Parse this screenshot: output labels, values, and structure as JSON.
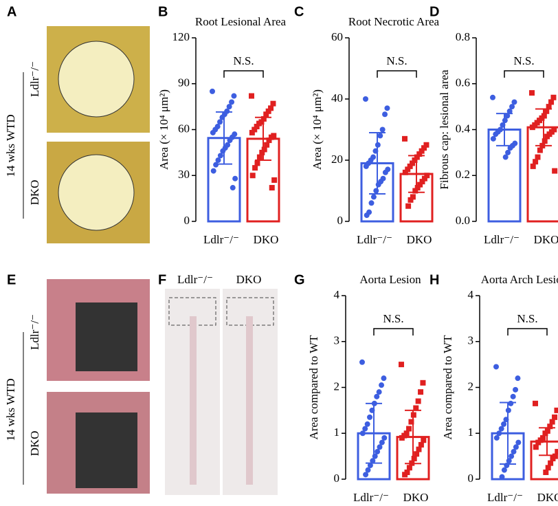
{
  "panels": {
    "letters": [
      "A",
      "B",
      "C",
      "D",
      "E",
      "F",
      "G",
      "H"
    ],
    "A": {
      "group": "14 wks WTD",
      "rows": [
        "Ldlr⁻/⁻",
        "DKO"
      ]
    },
    "E": {
      "group": "14 wks WTD",
      "rows": [
        "Ldlr⁻/⁻",
        "DKO"
      ]
    },
    "F": {
      "columns": [
        "Ldlr⁻/⁻",
        "DKO"
      ]
    }
  },
  "chart_data": [
    {
      "type": "bar",
      "title": "Root Lesional Area",
      "ylabel": "Area (× 10⁴ μm²)",
      "annotation": "N.S.",
      "categories": [
        "Ldlr⁻/⁻",
        "DKO"
      ],
      "colors": [
        "#3d5ee0",
        "#e02020"
      ],
      "markers": [
        "circle",
        "square"
      ],
      "values": [
        54.5,
        54
      ],
      "errors": [
        17,
        14
      ],
      "points": [
        [
          85,
          82,
          78,
          75,
          72,
          70,
          68,
          65,
          62,
          60,
          58,
          57,
          55,
          53,
          50,
          48,
          46,
          43,
          40,
          37,
          33,
          28,
          22
        ],
        [
          82,
          77,
          74,
          72,
          70,
          67,
          65,
          64,
          62,
          60,
          58,
          56,
          55,
          53,
          50,
          47,
          45,
          42,
          38,
          35,
          30,
          27,
          22
        ]
      ],
      "ylim": [
        0,
        120
      ],
      "yticks": [
        0,
        30,
        60,
        90,
        120
      ]
    },
    {
      "type": "bar",
      "title": "Root Necrotic Area",
      "ylabel": "Area (× 10⁴ μm²)",
      "annotation": "N.S.",
      "categories": [
        "Ldlr⁻/⁻",
        "DKO"
      ],
      "colors": [
        "#3d5ee0",
        "#e02020"
      ],
      "markers": [
        "circle",
        "square"
      ],
      "values": [
        19,
        15.5
      ],
      "errors": [
        10,
        6
      ],
      "points": [
        [
          40,
          37,
          35,
          30,
          28,
          25,
          23,
          21,
          20,
          19,
          18,
          17,
          16,
          14,
          13,
          12,
          10,
          8,
          6,
          3,
          2
        ],
        [
          27,
          25,
          24,
          23,
          22,
          21,
          20,
          19,
          18,
          17,
          16,
          15,
          14,
          13,
          12,
          11,
          10,
          8,
          7,
          5
        ]
      ],
      "ylim": [
        0,
        60
      ],
      "yticks": [
        0,
        20,
        40,
        60
      ]
    },
    {
      "type": "bar",
      "title": "",
      "ylabel": "Fibrous cap: lesional area",
      "annotation": "N.S.",
      "categories": [
        "Ldlr⁻/⁻",
        "DKO"
      ],
      "colors": [
        "#3d5ee0",
        "#e02020"
      ],
      "markers": [
        "circle",
        "square"
      ],
      "values": [
        0.4,
        0.41
      ],
      "errors": [
        0.07,
        0.08
      ],
      "points": [
        [
          0.54,
          0.52,
          0.5,
          0.48,
          0.46,
          0.44,
          0.42,
          0.4,
          0.39,
          0.38,
          0.36,
          0.34,
          0.33,
          0.32,
          0.3,
          0.28
        ],
        [
          0.56,
          0.54,
          0.52,
          0.5,
          0.48,
          0.46,
          0.45,
          0.44,
          0.43,
          0.42,
          0.41,
          0.4,
          0.39,
          0.38,
          0.37,
          0.35,
          0.33,
          0.31,
          0.28,
          0.26,
          0.24,
          0.22
        ]
      ],
      "ylim": [
        0,
        0.8
      ],
      "yticks": [
        {
          "value": 0,
          "label": "0.0"
        },
        0.2,
        0.4,
        0.6,
        0.8
      ]
    },
    {
      "type": "bar",
      "title": "Aorta Lesion",
      "ylabel": "Area compared to WT",
      "annotation": "N.S.",
      "categories": [
        "Ldlr⁻/⁻",
        "DKO"
      ],
      "colors": [
        "#3d5ee0",
        "#e02020"
      ],
      "markers": [
        "circle",
        "square"
      ],
      "values": [
        1,
        0.92
      ],
      "errors": [
        0.65,
        0.58
      ],
      "points": [
        [
          2.55,
          2.2,
          2.05,
          1.9,
          1.8,
          1.65,
          1.5,
          1.35,
          1.2,
          1.1,
          1,
          0.9,
          0.8,
          0.7,
          0.6,
          0.5,
          0.4,
          0.3,
          0.2,
          0.1
        ],
        [
          2.5,
          2.1,
          1.9,
          1.7,
          1.55,
          1.4,
          1.25,
          1.1,
          1,
          0.95,
          0.9,
          0.85,
          0.75,
          0.65,
          0.55,
          0.45,
          0.35,
          0.25,
          0.15,
          0.1
        ]
      ],
      "ylim": [
        0,
        4
      ],
      "yticks": [
        0,
        1,
        2,
        3,
        4
      ]
    },
    {
      "type": "bar",
      "title": "Aorta Arch Lesion",
      "ylabel": "Area compared to WT",
      "annotation": "N.S.",
      "categories": [
        "Ldlr⁻/⁻",
        "DKO"
      ],
      "colors": [
        "#3d5ee0",
        "#e02020"
      ],
      "markers": [
        "circle",
        "square"
      ],
      "values": [
        1,
        0.82
      ],
      "errors": [
        0.67,
        0.3
      ],
      "points": [
        [
          2.45,
          2.2,
          1.95,
          1.8,
          1.65,
          1.5,
          1.3,
          1.2,
          1.1,
          1,
          0.9,
          0.8,
          0.7,
          0.6,
          0.5,
          0.4,
          0.3,
          0.2,
          0.05
        ],
        [
          1.65,
          1.5,
          1.35,
          1.25,
          1.15,
          1.05,
          1,
          0.9,
          0.85,
          0.8,
          0.7,
          0.6,
          0.5,
          0.45,
          0.35,
          0.25,
          0.15
        ]
      ],
      "ylim": [
        0,
        4
      ],
      "yticks": [
        0,
        1,
        2,
        3,
        4
      ]
    }
  ]
}
